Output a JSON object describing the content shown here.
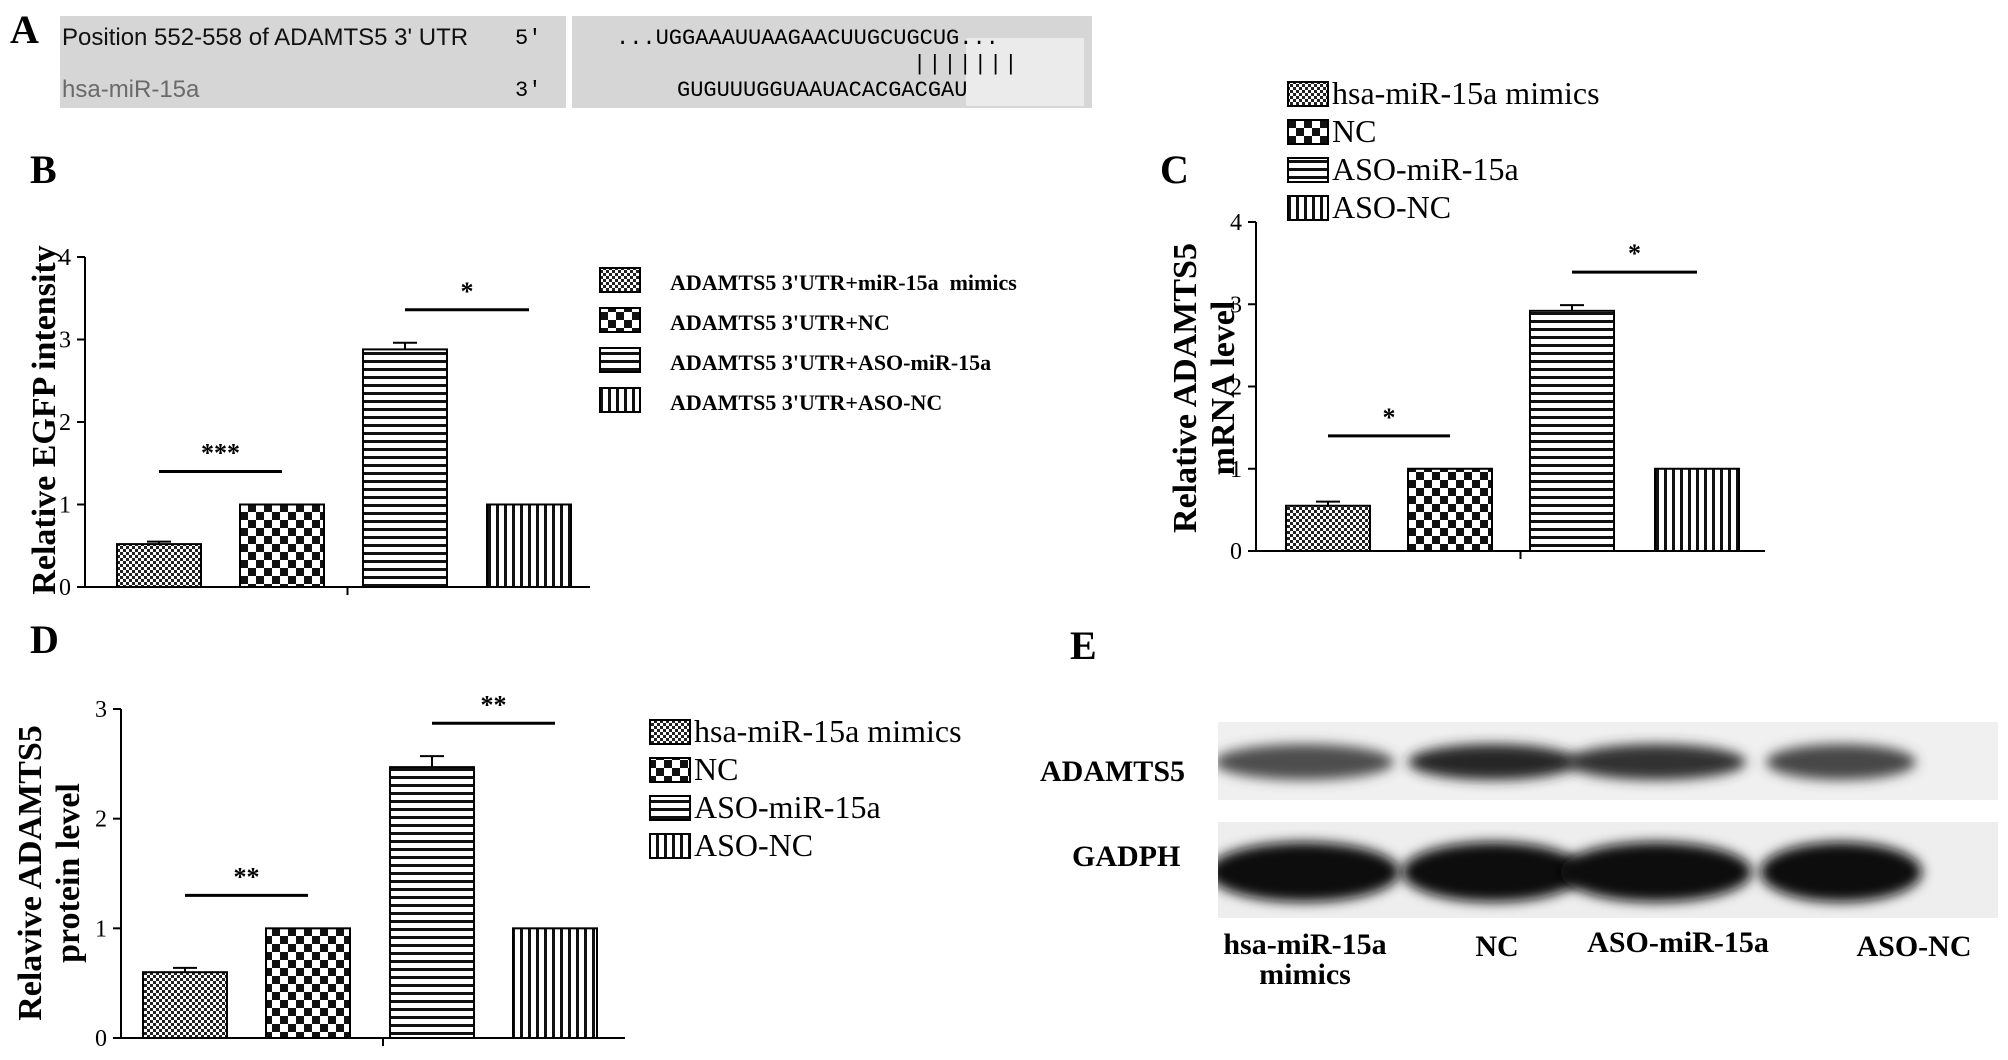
{
  "panel_letters": {
    "a": "A",
    "b": "B",
    "c": "C",
    "d": "D",
    "e": "E"
  },
  "panel_a": {
    "row1_label": "Position 552-558 of ADAMTS5 3' UTR",
    "row1_end": "5'",
    "row1_seq": "...UGGAAAUUAAGAACUUGCUGCUG...",
    "pairing": "|||||||",
    "row2_label": "hsa-miR-15a",
    "row2_end": "3'",
    "row2_seq": "GUGUUUGGUAAUACACGACGAU"
  },
  "chart_data": [
    {
      "panel": "B",
      "type": "bar",
      "categories": [
        "ADAMTS5 3'UTR+miR-15a  mimics",
        "ADAMTS5 3'UTR+NC",
        "ADAMTS5 3'UTR+ASO-miR-15a",
        "ADAMTS5 3'UTR+ASO-NC"
      ],
      "values": [
        0.52,
        1.0,
        2.88,
        1.0
      ],
      "errors": [
        0.03,
        0.0,
        0.08,
        0.0
      ],
      "patterns": [
        "fine-check",
        "checker",
        "hstripe",
        "vstripe"
      ],
      "ylabel": "Relative EGFP intensity",
      "ylim": [
        0,
        4
      ],
      "yticks": [
        "0",
        "1",
        "2",
        "3",
        "4"
      ],
      "significance": [
        {
          "between": [
            0,
            1
          ],
          "label": "***"
        },
        {
          "between": [
            2,
            3
          ],
          "label": "*"
        }
      ],
      "legend_position": "right"
    },
    {
      "panel": "C",
      "type": "bar",
      "categories": [
        "hsa-miR-15a mimics",
        "NC",
        "ASO-miR-15a",
        "ASO-NC"
      ],
      "values": [
        0.55,
        1.0,
        2.92,
        1.0
      ],
      "errors": [
        0.05,
        0.0,
        0.07,
        0.0
      ],
      "patterns": [
        "fine-check",
        "checker",
        "hstripe",
        "vstripe"
      ],
      "ylabel_line1": "Relative ADAMTS5",
      "ylabel_line2": "mRNA level",
      "ylim": [
        0,
        4
      ],
      "yticks": [
        "0",
        "1",
        "2",
        "3",
        "4"
      ],
      "significance": [
        {
          "between": [
            0,
            1
          ],
          "label": "*"
        },
        {
          "between": [
            2,
            3
          ],
          "label": "*"
        }
      ],
      "legend_position": "top-left"
    },
    {
      "panel": "D",
      "type": "bar",
      "categories": [
        "hsa-miR-15a mimics",
        "NC",
        "ASO-miR-15a",
        "ASO-NC"
      ],
      "values": [
        0.6,
        1.0,
        2.47,
        1.0
      ],
      "errors": [
        0.04,
        0.0,
        0.1,
        0.0
      ],
      "patterns": [
        "fine-check",
        "checker",
        "hstripe",
        "vstripe"
      ],
      "ylabel_line1": "Relavive ADAMTS5",
      "ylabel_line2": "protein level",
      "ylim": [
        0,
        3
      ],
      "yticks": [
        "0",
        "1",
        "2",
        "3"
      ],
      "significance": [
        {
          "between": [
            0,
            1
          ],
          "label": "**"
        },
        {
          "between": [
            2,
            3
          ],
          "label": "**"
        }
      ],
      "legend_position": "right"
    }
  ],
  "panel_e": {
    "row_labels": [
      "ADAMTS5",
      "GADPH"
    ],
    "lanes": [
      "hsa-miR-15a\nmimics",
      "NC",
      "ASO-miR-15a",
      "ASO-NC"
    ],
    "band_intensity_adamts5": [
      0.7,
      0.85,
      0.8,
      0.72
    ],
    "band_intensity_gadph": [
      0.95,
      0.95,
      0.95,
      0.95
    ]
  }
}
